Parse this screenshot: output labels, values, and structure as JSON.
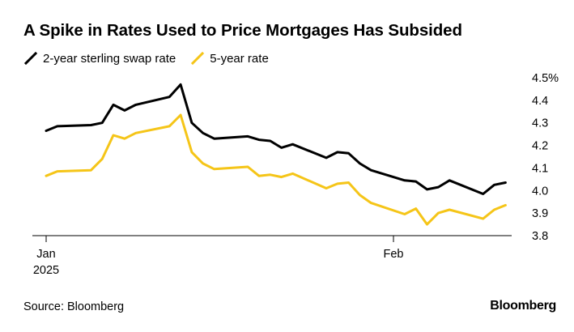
{
  "title": "A Spike in Rates Used to Price Mortgages Has Subsided",
  "source": "Source: Bloomberg",
  "brand": "Bloomberg",
  "colors": {
    "swap_2y": "#000000",
    "rate_5y": "#f5c518",
    "axis": "#000000",
    "text": "#000000"
  },
  "chart_data": {
    "type": "line",
    "title": "A Spike in Rates Used to Price Mortgages Has Subsided",
    "xlabel": "",
    "ylabel": "",
    "y_axis_side": "right",
    "ylim": [
      3.8,
      4.5
    ],
    "yticks": [
      3.8,
      3.9,
      4.0,
      4.1,
      4.2,
      4.3,
      4.4,
      4.5
    ],
    "ytick_labels": [
      "3.8",
      "3.9",
      "4.0",
      "4.1",
      "4.2",
      "4.3",
      "4.4",
      "4.5%"
    ],
    "x_domain": [
      "2025-01-01",
      "2025-02-13"
    ],
    "xticks": [
      {
        "date": "2025-01-01",
        "label": [
          "Jan",
          "2025"
        ]
      },
      {
        "date": "2025-02-01",
        "label": [
          "Feb"
        ]
      }
    ],
    "grid": false,
    "legend_position": "top-left",
    "series": [
      {
        "name": "2-year sterling swap rate",
        "color": "#000000",
        "points": [
          [
            "2025-01-01",
            4.265
          ],
          [
            "2025-01-02",
            4.285
          ],
          [
            "2025-01-05",
            4.29
          ],
          [
            "2025-01-06",
            4.3
          ],
          [
            "2025-01-07",
            4.38
          ],
          [
            "2025-01-08",
            4.355
          ],
          [
            "2025-01-09",
            4.38
          ],
          [
            "2025-01-12",
            4.415
          ],
          [
            "2025-01-13",
            4.47
          ],
          [
            "2025-01-14",
            4.3
          ],
          [
            "2025-01-15",
            4.255
          ],
          [
            "2025-01-16",
            4.23
          ],
          [
            "2025-01-19",
            4.24
          ],
          [
            "2025-01-20",
            4.225
          ],
          [
            "2025-01-21",
            4.22
          ],
          [
            "2025-01-22",
            4.19
          ],
          [
            "2025-01-23",
            4.205
          ],
          [
            "2025-01-26",
            4.145
          ],
          [
            "2025-01-27",
            4.17
          ],
          [
            "2025-01-28",
            4.165
          ],
          [
            "2025-01-29",
            4.12
          ],
          [
            "2025-01-30",
            4.09
          ],
          [
            "2025-02-02",
            4.045
          ],
          [
            "2025-02-03",
            4.04
          ],
          [
            "2025-02-04",
            4.005
          ],
          [
            "2025-02-05",
            4.015
          ],
          [
            "2025-02-06",
            4.045
          ],
          [
            "2025-02-09",
            3.985
          ],
          [
            "2025-02-10",
            4.025
          ],
          [
            "2025-02-11",
            4.035
          ]
        ]
      },
      {
        "name": "5-year rate",
        "color": "#f5c518",
        "points": [
          [
            "2025-01-01",
            4.065
          ],
          [
            "2025-01-02",
            4.085
          ],
          [
            "2025-01-05",
            4.09
          ],
          [
            "2025-01-06",
            4.14
          ],
          [
            "2025-01-07",
            4.245
          ],
          [
            "2025-01-08",
            4.23
          ],
          [
            "2025-01-09",
            4.255
          ],
          [
            "2025-01-12",
            4.285
          ],
          [
            "2025-01-13",
            4.335
          ],
          [
            "2025-01-14",
            4.17
          ],
          [
            "2025-01-15",
            4.12
          ],
          [
            "2025-01-16",
            4.095
          ],
          [
            "2025-01-19",
            4.105
          ],
          [
            "2025-01-20",
            4.065
          ],
          [
            "2025-01-21",
            4.07
          ],
          [
            "2025-01-22",
            4.06
          ],
          [
            "2025-01-23",
            4.075
          ],
          [
            "2025-01-26",
            4.01
          ],
          [
            "2025-01-27",
            4.03
          ],
          [
            "2025-01-28",
            4.035
          ],
          [
            "2025-01-29",
            3.98
          ],
          [
            "2025-01-30",
            3.945
          ],
          [
            "2025-02-02",
            3.895
          ],
          [
            "2025-02-03",
            3.92
          ],
          [
            "2025-02-04",
            3.85
          ],
          [
            "2025-02-05",
            3.9
          ],
          [
            "2025-02-06",
            3.915
          ],
          [
            "2025-02-09",
            3.875
          ],
          [
            "2025-02-10",
            3.915
          ],
          [
            "2025-02-11",
            3.935
          ]
        ]
      }
    ]
  }
}
